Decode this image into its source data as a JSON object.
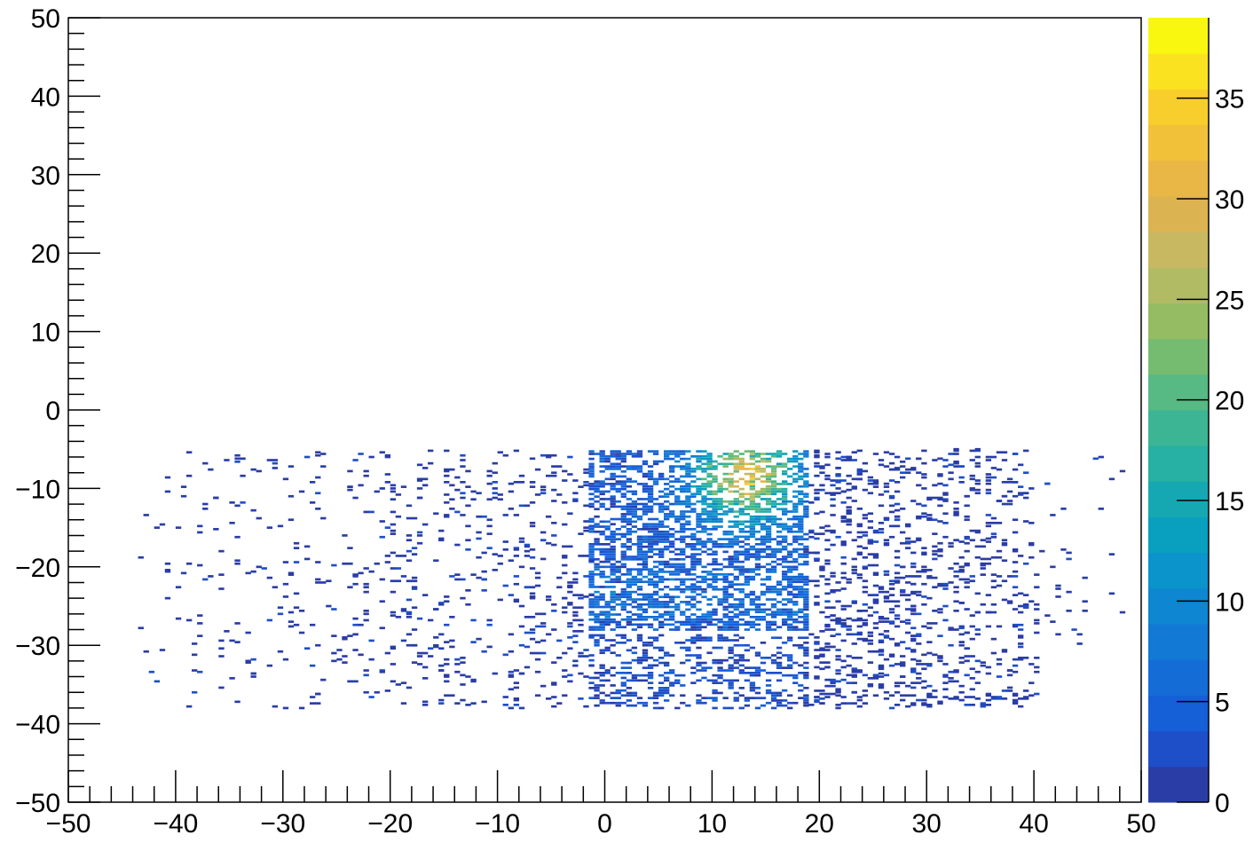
{
  "chart_data": {
    "type": "heatmap",
    "title": "",
    "xlabel": "",
    "ylabel": "",
    "xlim": [
      -50,
      50
    ],
    "ylim": [
      -50,
      50
    ],
    "x_ticks": [
      "−50",
      "−40",
      "−30",
      "−20",
      "−10",
      "0",
      "10",
      "20",
      "30",
      "40",
      "50"
    ],
    "x_tick_values": [
      -50,
      -40,
      -30,
      -20,
      -10,
      0,
      10,
      20,
      30,
      40,
      50
    ],
    "y_ticks": [
      "−50",
      "−40",
      "−30",
      "−20",
      "−10",
      "0",
      "10",
      "20",
      "30",
      "40",
      "50"
    ],
    "y_tick_values": [
      -50,
      -40,
      -30,
      -20,
      -10,
      0,
      10,
      20,
      30,
      40,
      50
    ],
    "bin_width": [
      0.5,
      0.2
    ],
    "z_range": [
      0,
      39
    ],
    "z_ticks": [
      "0",
      "5",
      "10",
      "15",
      "20",
      "25",
      "30",
      "35"
    ],
    "z_tick_values": [
      0,
      5,
      10,
      15,
      20,
      25,
      30,
      35
    ],
    "palette": [
      "#2a3da6",
      "#1e4fc9",
      "#155fd7",
      "#146cd7",
      "#1279d4",
      "#0e86d1",
      "#0b93cb",
      "#099fbe",
      "#15a8b2",
      "#27b0a4",
      "#3cb594",
      "#57b983",
      "#75bb70",
      "#95bc63",
      "#b1bb63",
      "#c9b862",
      "#dbb451",
      "#e9b745",
      "#f1c13a",
      "#f8ce2d",
      "#fbe220",
      "#f9f70f"
    ],
    "regions": [
      {
        "x": [
          -1.5,
          19
        ],
        "y": [
          -28,
          -5
        ],
        "density": "high",
        "mean_count": 5
      },
      {
        "x": [
          -1.5,
          19
        ],
        "y": [
          -38,
          -28.5
        ],
        "density": "medium",
        "mean_count": 2
      },
      {
        "x": [
          5,
          17
        ],
        "y": [
          -16,
          -7
        ],
        "density": "peak",
        "peak_count": 39,
        "peak_at": [
          13,
          -8.5
        ]
      },
      {
        "x": [
          -44,
          -1.5
        ],
        "y": [
          -38,
          -5
        ],
        "density": "sparse",
        "mean_count": 1
      },
      {
        "x": [
          19,
          40
        ],
        "y": [
          -38,
          -5
        ],
        "density": "sparse-medium",
        "mean_count": 1
      },
      {
        "x": [
          40,
          48
        ],
        "y": [
          -30,
          -5
        ],
        "density": "very-sparse",
        "mean_count": 1
      }
    ],
    "grid": false,
    "legend": "color bar at right"
  }
}
